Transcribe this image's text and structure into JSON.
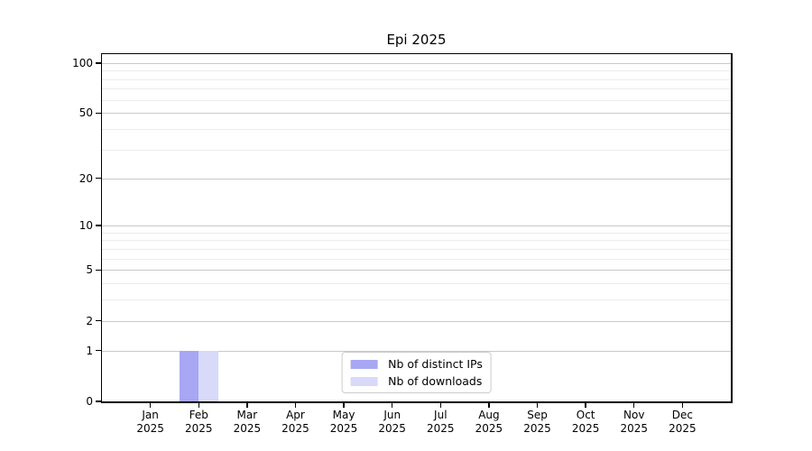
{
  "chart_data": {
    "type": "bar",
    "title": "Epi 2025",
    "categories": [
      "Jan",
      "Feb",
      "Mar",
      "Apr",
      "May",
      "Jun",
      "Jul",
      "Aug",
      "Sep",
      "Oct",
      "Nov",
      "Dec"
    ],
    "category_sublabel": "2025",
    "series": [
      {
        "name": "Nb of distinct IPs",
        "color": "#a7a7f3",
        "values": [
          0,
          1,
          0,
          0,
          0,
          0,
          0,
          0,
          0,
          0,
          0,
          0
        ]
      },
      {
        "name": "Nb of downloads",
        "color": "#d9d9fa",
        "values": [
          0,
          1,
          0,
          0,
          0,
          0,
          0,
          0,
          0,
          0,
          0,
          0
        ]
      }
    ],
    "yscale": "log1p",
    "ylim": [
      0,
      113
    ],
    "xlim": [
      -1,
      12
    ],
    "bar_width_units": 0.4,
    "y_major_ticks": [
      0,
      1,
      2,
      5,
      10,
      20,
      50,
      100
    ],
    "y_minor_ticks": [
      3,
      4,
      6,
      7,
      8,
      9,
      30,
      40,
      60,
      70,
      80,
      90
    ],
    "grid": "horizontal",
    "legend": {
      "position": "lower center",
      "entries": [
        "Nb of distinct IPs",
        "Nb of downloads"
      ]
    },
    "colors": {
      "major_grid": "#c9c9c9",
      "minor_grid": "#ececec",
      "spine": "#000000",
      "text": "#000000",
      "background": "#ffffff"
    }
  }
}
